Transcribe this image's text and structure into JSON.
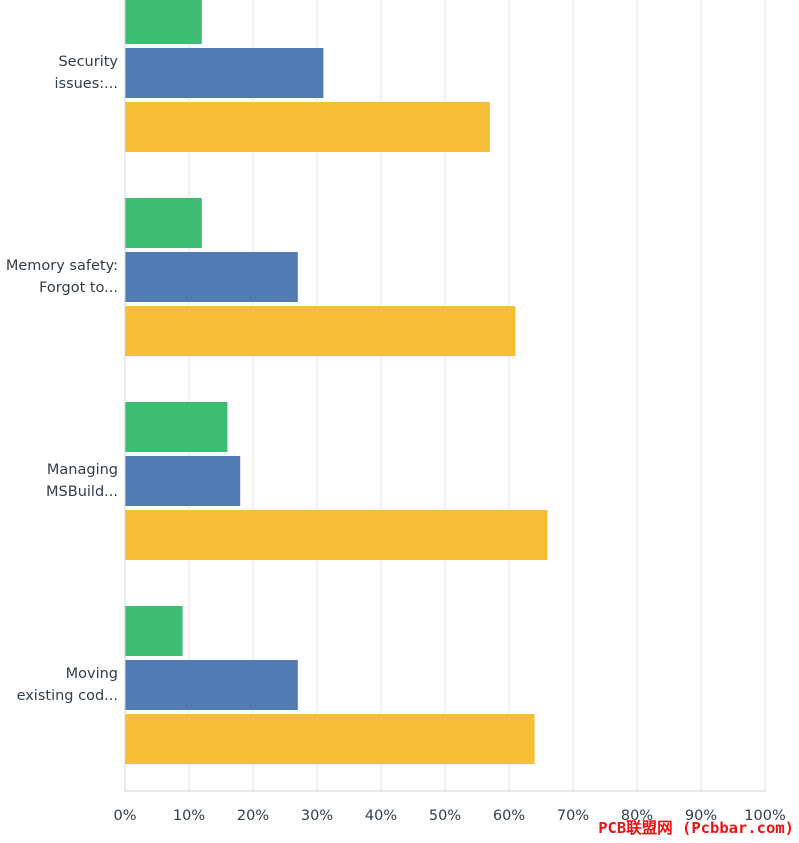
{
  "chart_data": {
    "type": "bar",
    "orientation": "horizontal",
    "categories": [
      [
        "Security",
        "issues:..."
      ],
      [
        "Memory safety:",
        "Forgot to..."
      ],
      [
        "Managing",
        "MSBuild..."
      ],
      [
        "Moving",
        "existing cod..."
      ]
    ],
    "series": [
      {
        "color": "#3dbd74",
        "values": [
          12,
          12,
          16,
          9
        ]
      },
      {
        "color": "#527bb3",
        "values": [
          31,
          27,
          18,
          27
        ]
      },
      {
        "color": "#f6be35",
        "values": [
          57,
          61,
          66,
          64
        ]
      }
    ],
    "xlim": [
      0,
      100
    ],
    "x_ticks": [
      "0%",
      "10%",
      "20%",
      "30%",
      "40%",
      "50%",
      "60%",
      "70%",
      "80%",
      "90%",
      "100%"
    ],
    "grid": true,
    "title": "",
    "xlabel": "",
    "ylabel": ""
  },
  "watermark": "PCB联盟网 (Pcbbar.com)"
}
